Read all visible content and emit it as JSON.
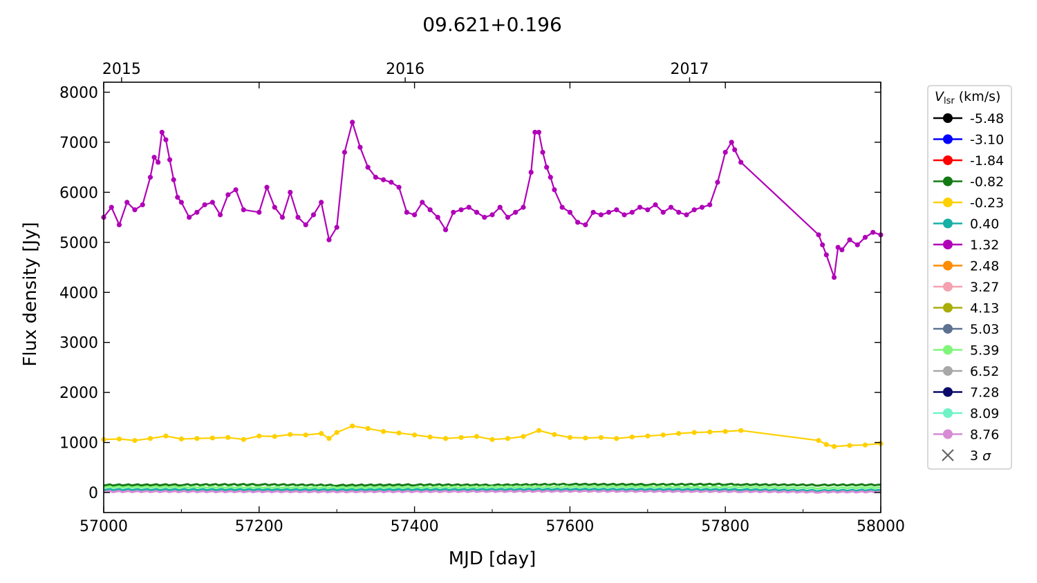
{
  "chart_data": {
    "type": "line",
    "title": "09.621+0.196",
    "xlabel": "MJD [day]",
    "ylabel": "Flux density [Jy]",
    "xlim": [
      57000,
      58000
    ],
    "ylim": [
      -400,
      8200
    ],
    "xticks": [
      57000,
      57200,
      57400,
      57600,
      57800,
      58000
    ],
    "yticks": [
      0,
      1000,
      2000,
      3000,
      4000,
      5000,
      6000,
      7000,
      8000
    ],
    "top_axis": {
      "labels": [
        {
          "text": "2015",
          "x": 57023
        },
        {
          "text": "2016",
          "x": 57388
        },
        {
          "text": "2017",
          "x": 57754
        }
      ]
    },
    "grid": false,
    "legend": {
      "placement": "outside-right",
      "title_main": "V",
      "title_sub": "lsr",
      "title_rest": " (km/s)",
      "sigma_entry": {
        "label_prefix": "3 ",
        "label_symbol": "σ",
        "color": "#666666"
      }
    },
    "series": [
      {
        "name": "-5.48",
        "color": "#000000",
        "level": 0
      },
      {
        "name": "-3.10",
        "color": "#0000ff",
        "level": 0
      },
      {
        "name": "-1.84",
        "color": "#ff0000",
        "level": 0
      },
      {
        "name": "-0.82",
        "color": "#137a13",
        "level": 150,
        "values": [
          [
            57000,
            150
          ],
          [
            57100,
            155
          ],
          [
            57200,
            160
          ],
          [
            57300,
            145
          ],
          [
            57400,
            155
          ],
          [
            57500,
            150
          ],
          [
            57600,
            165
          ],
          [
            57700,
            160
          ],
          [
            57800,
            165
          ],
          [
            57820,
            160
          ],
          [
            57920,
            150
          ],
          [
            58000,
            155
          ]
        ]
      },
      {
        "name": "-0.23",
        "color": "#ffd000",
        "values": [
          [
            57000,
            1060
          ],
          [
            57020,
            1070
          ],
          [
            57040,
            1040
          ],
          [
            57060,
            1080
          ],
          [
            57080,
            1130
          ],
          [
            57100,
            1070
          ],
          [
            57120,
            1080
          ],
          [
            57140,
            1090
          ],
          [
            57160,
            1100
          ],
          [
            57180,
            1060
          ],
          [
            57200,
            1130
          ],
          [
            57220,
            1120
          ],
          [
            57240,
            1160
          ],
          [
            57260,
            1150
          ],
          [
            57280,
            1180
          ],
          [
            57290,
            1080
          ],
          [
            57300,
            1200
          ],
          [
            57320,
            1330
          ],
          [
            57340,
            1280
          ],
          [
            57360,
            1220
          ],
          [
            57380,
            1190
          ],
          [
            57400,
            1150
          ],
          [
            57420,
            1110
          ],
          [
            57440,
            1080
          ],
          [
            57460,
            1100
          ],
          [
            57480,
            1120
          ],
          [
            57500,
            1060
          ],
          [
            57520,
            1080
          ],
          [
            57540,
            1120
          ],
          [
            57560,
            1240
          ],
          [
            57580,
            1160
          ],
          [
            57600,
            1100
          ],
          [
            57620,
            1090
          ],
          [
            57640,
            1100
          ],
          [
            57660,
            1080
          ],
          [
            57680,
            1110
          ],
          [
            57700,
            1130
          ],
          [
            57720,
            1150
          ],
          [
            57740,
            1180
          ],
          [
            57760,
            1200
          ],
          [
            57780,
            1210
          ],
          [
            57800,
            1220
          ],
          [
            57820,
            1240
          ],
          [
            57920,
            1040
          ],
          [
            57930,
            960
          ],
          [
            57940,
            920
          ],
          [
            57960,
            940
          ],
          [
            57980,
            950
          ],
          [
            58000,
            980
          ]
        ]
      },
      {
        "name": "0.40",
        "color": "#17b0a6",
        "level": 60,
        "values": [
          [
            57000,
            60
          ],
          [
            57300,
            55
          ],
          [
            57600,
            65
          ],
          [
            57820,
            60
          ],
          [
            57920,
            40
          ],
          [
            58000,
            50
          ]
        ]
      },
      {
        "name": "1.32",
        "color": "#b000b8",
        "values": [
          [
            57000,
            5500
          ],
          [
            57010,
            5700
          ],
          [
            57020,
            5350
          ],
          [
            57030,
            5800
          ],
          [
            57040,
            5650
          ],
          [
            57050,
            5750
          ],
          [
            57060,
            6300
          ],
          [
            57065,
            6700
          ],
          [
            57070,
            6600
          ],
          [
            57075,
            7200
          ],
          [
            57080,
            7050
          ],
          [
            57085,
            6650
          ],
          [
            57090,
            6250
          ],
          [
            57095,
            5900
          ],
          [
            57100,
            5800
          ],
          [
            57110,
            5500
          ],
          [
            57120,
            5600
          ],
          [
            57130,
            5750
          ],
          [
            57140,
            5800
          ],
          [
            57150,
            5550
          ],
          [
            57160,
            5950
          ],
          [
            57170,
            6050
          ],
          [
            57180,
            5650
          ],
          [
            57200,
            5600
          ],
          [
            57210,
            6100
          ],
          [
            57220,
            5700
          ],
          [
            57230,
            5500
          ],
          [
            57240,
            6000
          ],
          [
            57250,
            5500
          ],
          [
            57260,
            5350
          ],
          [
            57270,
            5550
          ],
          [
            57280,
            5800
          ],
          [
            57290,
            5050
          ],
          [
            57300,
            5300
          ],
          [
            57310,
            6800
          ],
          [
            57320,
            7400
          ],
          [
            57330,
            6900
          ],
          [
            57340,
            6500
          ],
          [
            57350,
            6300
          ],
          [
            57360,
            6250
          ],
          [
            57370,
            6200
          ],
          [
            57380,
            6100
          ],
          [
            57390,
            5600
          ],
          [
            57400,
            5550
          ],
          [
            57410,
            5800
          ],
          [
            57420,
            5650
          ],
          [
            57430,
            5500
          ],
          [
            57440,
            5250
          ],
          [
            57450,
            5600
          ],
          [
            57460,
            5650
          ],
          [
            57470,
            5700
          ],
          [
            57480,
            5600
          ],
          [
            57490,
            5500
          ],
          [
            57500,
            5550
          ],
          [
            57510,
            5700
          ],
          [
            57520,
            5500
          ],
          [
            57530,
            5600
          ],
          [
            57540,
            5700
          ],
          [
            57550,
            6400
          ],
          [
            57555,
            7200
          ],
          [
            57560,
            7200
          ],
          [
            57565,
            6800
          ],
          [
            57570,
            6500
          ],
          [
            57575,
            6300
          ],
          [
            57580,
            6050
          ],
          [
            57590,
            5700
          ],
          [
            57600,
            5600
          ],
          [
            57610,
            5400
          ],
          [
            57620,
            5350
          ],
          [
            57630,
            5600
          ],
          [
            57640,
            5550
          ],
          [
            57650,
            5600
          ],
          [
            57660,
            5650
          ],
          [
            57670,
            5550
          ],
          [
            57680,
            5600
          ],
          [
            57690,
            5700
          ],
          [
            57700,
            5650
          ],
          [
            57710,
            5750
          ],
          [
            57720,
            5600
          ],
          [
            57730,
            5700
          ],
          [
            57740,
            5600
          ],
          [
            57750,
            5550
          ],
          [
            57760,
            5650
          ],
          [
            57770,
            5700
          ],
          [
            57780,
            5750
          ],
          [
            57790,
            6200
          ],
          [
            57800,
            6800
          ],
          [
            57808,
            7000
          ],
          [
            57812,
            6850
          ],
          [
            57820,
            6600
          ],
          [
            57920,
            5150
          ],
          [
            57925,
            4950
          ],
          [
            57930,
            4750
          ],
          [
            57940,
            4300
          ],
          [
            57945,
            4900
          ],
          [
            57950,
            4850
          ],
          [
            57960,
            5050
          ],
          [
            57970,
            4950
          ],
          [
            57980,
            5100
          ],
          [
            57990,
            5200
          ],
          [
            58000,
            5150
          ]
        ]
      },
      {
        "name": "2.48",
        "color": "#ff8c00",
        "level": 0
      },
      {
        "name": "3.27",
        "color": "#f4a1b1",
        "level": 0
      },
      {
        "name": "4.13",
        "color": "#a8ad0a",
        "level": 0
      },
      {
        "name": "5.03",
        "color": "#5d7290",
        "level": 0
      },
      {
        "name": "5.39",
        "color": "#7ff67a",
        "level": 110,
        "values": [
          [
            57000,
            110
          ],
          [
            57300,
            100
          ],
          [
            57600,
            115
          ],
          [
            57820,
            110
          ],
          [
            57920,
            90
          ],
          [
            58000,
            100
          ]
        ]
      },
      {
        "name": "6.52",
        "color": "#a8a8a8",
        "level": 0
      },
      {
        "name": "7.28",
        "color": "#0a0a6a",
        "level": 0
      },
      {
        "name": "8.09",
        "color": "#6ff3c6",
        "level": 0
      },
      {
        "name": "8.76",
        "color": "#d68bd4",
        "level": 20,
        "values": [
          [
            57000,
            20
          ],
          [
            57300,
            15
          ],
          [
            57600,
            25
          ],
          [
            57820,
            20
          ],
          [
            57920,
            10
          ],
          [
            58000,
            15
          ]
        ]
      }
    ]
  }
}
